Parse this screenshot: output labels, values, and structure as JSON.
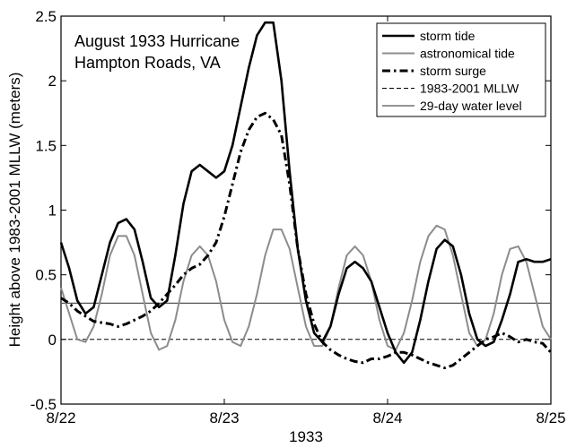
{
  "chart_data": {
    "type": "line",
    "annotation": [
      "August 1933 Hurricane",
      "Hampton Roads, VA"
    ],
    "xlabel": "1933",
    "ylabel": "Height above 1983-2001 MLLW (meters)",
    "xlim": [
      0,
      3
    ],
    "ylim": [
      -0.5,
      2.5
    ],
    "x_ticks": [
      0,
      1,
      2,
      3
    ],
    "x_tick_labels": [
      "8/22",
      "8/23",
      "8/24",
      "8/25"
    ],
    "y_ticks": [
      -0.5,
      0,
      0.5,
      1,
      1.5,
      2,
      2.5
    ],
    "y_tick_labels": [
      "-0.5",
      "0",
      "0.5",
      "1",
      "1.5",
      "2",
      "2.5"
    ],
    "grid": false,
    "legend_position": "top-right",
    "colors": {
      "storm_tide": "#000000",
      "astronomical_tide": "#8c8c8c",
      "storm_surge": "#000000",
      "mllw": "#000000",
      "water_level": "#555555"
    },
    "series": [
      {
        "name": "storm tide",
        "style": "solid-thick",
        "x": [
          0,
          0.05,
          0.1,
          0.15,
          0.2,
          0.25,
          0.3,
          0.35,
          0.4,
          0.45,
          0.5,
          0.55,
          0.6,
          0.65,
          0.7,
          0.75,
          0.8,
          0.85,
          0.9,
          0.95,
          1.0,
          1.05,
          1.1,
          1.15,
          1.2,
          1.25,
          1.3,
          1.35,
          1.4,
          1.45,
          1.5,
          1.55,
          1.6,
          1.65,
          1.7,
          1.75,
          1.8,
          1.85,
          1.9,
          1.95,
          2.0,
          2.05,
          2.1,
          2.15,
          2.2,
          2.25,
          2.3,
          2.35,
          2.4,
          2.45,
          2.5,
          2.55,
          2.6,
          2.65,
          2.7,
          2.75,
          2.8,
          2.85,
          2.9,
          2.95,
          3.0
        ],
        "y": [
          0.75,
          0.55,
          0.3,
          0.2,
          0.25,
          0.5,
          0.75,
          0.9,
          0.93,
          0.85,
          0.6,
          0.32,
          0.25,
          0.3,
          0.65,
          1.05,
          1.3,
          1.35,
          1.3,
          1.25,
          1.3,
          1.5,
          1.8,
          2.1,
          2.35,
          2.45,
          2.45,
          2.0,
          1.3,
          0.7,
          0.3,
          0.05,
          -0.02,
          0.1,
          0.35,
          0.55,
          0.6,
          0.55,
          0.45,
          0.25,
          0.05,
          -0.1,
          -0.18,
          -0.1,
          0.15,
          0.45,
          0.7,
          0.77,
          0.72,
          0.5,
          0.2,
          0.0,
          -0.05,
          -0.02,
          0.15,
          0.35,
          0.6,
          0.62,
          0.6,
          0.6,
          0.62
        ]
      },
      {
        "name": "astronomical tide",
        "style": "solid-gray",
        "x": [
          0,
          0.05,
          0.1,
          0.15,
          0.2,
          0.25,
          0.3,
          0.35,
          0.4,
          0.45,
          0.5,
          0.55,
          0.6,
          0.65,
          0.7,
          0.75,
          0.8,
          0.85,
          0.9,
          0.95,
          1.0,
          1.05,
          1.1,
          1.15,
          1.2,
          1.25,
          1.3,
          1.35,
          1.4,
          1.45,
          1.5,
          1.55,
          1.6,
          1.65,
          1.7,
          1.75,
          1.8,
          1.85,
          1.9,
          1.95,
          2.0,
          2.05,
          2.1,
          2.15,
          2.2,
          2.25,
          2.3,
          2.35,
          2.4,
          2.45,
          2.5,
          2.55,
          2.6,
          2.65,
          2.7,
          2.75,
          2.8,
          2.85,
          2.9,
          2.95,
          3.0
        ],
        "y": [
          0.4,
          0.2,
          0.0,
          -0.02,
          0.1,
          0.35,
          0.65,
          0.8,
          0.8,
          0.65,
          0.35,
          0.05,
          -0.08,
          -0.05,
          0.15,
          0.45,
          0.65,
          0.72,
          0.65,
          0.45,
          0.15,
          -0.02,
          -0.05,
          0.1,
          0.35,
          0.65,
          0.85,
          0.85,
          0.7,
          0.4,
          0.1,
          -0.05,
          -0.05,
          0.1,
          0.4,
          0.65,
          0.72,
          0.65,
          0.45,
          0.15,
          -0.05,
          -0.08,
          0.05,
          0.3,
          0.6,
          0.8,
          0.88,
          0.85,
          0.65,
          0.35,
          0.05,
          -0.05,
          0.0,
          0.2,
          0.5,
          0.7,
          0.72,
          0.6,
          0.35,
          0.1,
          0.0
        ]
      },
      {
        "name": "storm surge",
        "style": "dash-dot-thick",
        "x": [
          0,
          0.05,
          0.1,
          0.15,
          0.2,
          0.25,
          0.3,
          0.35,
          0.4,
          0.45,
          0.5,
          0.55,
          0.6,
          0.65,
          0.7,
          0.75,
          0.8,
          0.85,
          0.9,
          0.95,
          1.0,
          1.05,
          1.1,
          1.15,
          1.2,
          1.25,
          1.3,
          1.35,
          1.4,
          1.45,
          1.5,
          1.55,
          1.6,
          1.65,
          1.7,
          1.75,
          1.8,
          1.85,
          1.9,
          1.95,
          2.0,
          2.05,
          2.1,
          2.15,
          2.2,
          2.25,
          2.3,
          2.35,
          2.4,
          2.45,
          2.5,
          2.55,
          2.6,
          2.65,
          2.7,
          2.75,
          2.8,
          2.85,
          2.9,
          2.95,
          3.0
        ],
        "y": [
          0.32,
          0.28,
          0.22,
          0.18,
          0.14,
          0.13,
          0.12,
          0.1,
          0.12,
          0.15,
          0.18,
          0.22,
          0.28,
          0.35,
          0.42,
          0.5,
          0.55,
          0.58,
          0.65,
          0.75,
          0.95,
          1.2,
          1.45,
          1.62,
          1.72,
          1.75,
          1.7,
          1.58,
          1.2,
          0.7,
          0.35,
          0.12,
          -0.02,
          -0.08,
          -0.12,
          -0.15,
          -0.17,
          -0.18,
          -0.15,
          -0.15,
          -0.13,
          -0.1,
          -0.1,
          -0.12,
          -0.15,
          -0.18,
          -0.2,
          -0.22,
          -0.2,
          -0.15,
          -0.1,
          -0.05,
          0.0,
          0.02,
          0.05,
          0.02,
          -0.02,
          0.0,
          -0.02,
          -0.03,
          -0.1
        ]
      },
      {
        "name": "1983-2001 MLLW",
        "style": "dashed",
        "x": [
          0,
          3
        ],
        "y": [
          0,
          0
        ]
      },
      {
        "name": "29-day water level",
        "style": "solid-thin",
        "x": [
          0,
          3
        ],
        "y": [
          0.28,
          0.28
        ]
      }
    ]
  }
}
